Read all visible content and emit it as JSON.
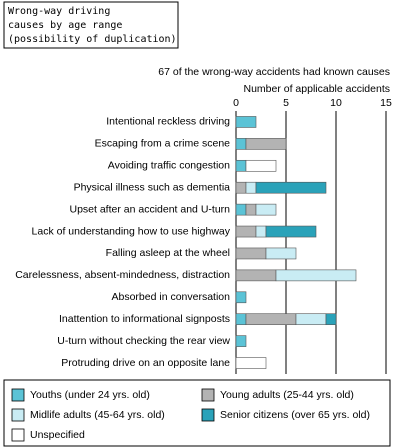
{
  "chart_data": {
    "type": "stacked-barh",
    "title": [
      "Wrong-way driving",
      "causes by age range",
      "(possibility of duplication)"
    ],
    "subtitle": "67 of the wrong-way accidents had known causes",
    "xlabel": "Number of applicable accidents",
    "categories": [
      "Intentional reckless driving",
      "Escaping from a crime scene",
      "Avoiding traffic congestion",
      "Physical illness such as dementia",
      "Upset after an accident and U-turn",
      "Lack of understanding how to use highway",
      "Falling asleep at the wheel",
      "Carelessness, absent-mindedness, distraction",
      "Absorbed in conversation",
      "Inattention to informational signposts",
      "U-turn without checking the rear view",
      "Protruding drive on an opposite lane"
    ],
    "series": [
      {
        "name": "Youths (under 24 yrs. old)",
        "color": "#5bc3d6",
        "values": [
          2,
          1,
          1,
          null,
          1,
          null,
          null,
          null,
          1,
          1,
          1,
          null
        ]
      },
      {
        "name": "Young adults (25-44 yrs. old)",
        "color": "#b3b3b3",
        "values": [
          null,
          4,
          null,
          1,
          1,
          2,
          3,
          4,
          null,
          5,
          null,
          null
        ]
      },
      {
        "name": "Midlife adults (45-64 yrs. old)",
        "color": "#c9ecf4",
        "values": [
          null,
          null,
          null,
          1,
          2,
          1,
          3,
          8,
          null,
          3,
          null,
          null
        ]
      },
      {
        "name": "Senior citizens (over 65 yrs. old)",
        "color": "#2aa2b9",
        "values": [
          null,
          null,
          null,
          7,
          null,
          5,
          null,
          null,
          null,
          1,
          null,
          null
        ]
      },
      {
        "name": "Unspecified",
        "color": "#ffffff",
        "values": [
          null,
          null,
          3,
          null,
          null,
          null,
          null,
          null,
          null,
          null,
          null,
          3
        ]
      }
    ],
    "xlim": [
      0,
      15
    ],
    "xticks": [
      0,
      5,
      10,
      15
    ],
    "grid": true
  }
}
